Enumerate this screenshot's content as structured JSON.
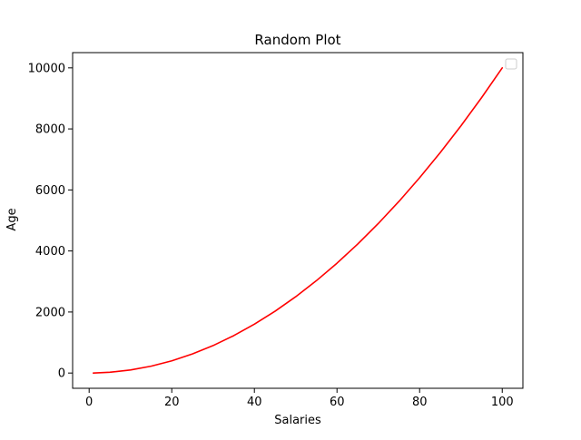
{
  "chart_data": {
    "type": "line",
    "title": "Random Plot",
    "xlabel": "Salaries",
    "ylabel": "Age",
    "xlim": [
      -4.0,
      105.0
    ],
    "ylim": [
      -500,
      10500
    ],
    "x_ticks": [
      0,
      20,
      40,
      60,
      80,
      100
    ],
    "y_ticks": [
      0,
      2000,
      4000,
      6000,
      8000,
      10000
    ],
    "grid": false,
    "legend": {
      "placement": "top-right",
      "entries": []
    },
    "series": [
      {
        "color": "#ff0000",
        "x": [
          1,
          5,
          10,
          15,
          20,
          25,
          30,
          35,
          40,
          45,
          50,
          55,
          60,
          65,
          70,
          75,
          80,
          85,
          90,
          95,
          100
        ],
        "y": [
          1,
          25,
          100,
          225,
          400,
          625,
          900,
          1225,
          1600,
          2025,
          2500,
          3025,
          3600,
          4225,
          4900,
          5625,
          6400,
          7225,
          8100,
          9025,
          10000
        ]
      }
    ]
  }
}
